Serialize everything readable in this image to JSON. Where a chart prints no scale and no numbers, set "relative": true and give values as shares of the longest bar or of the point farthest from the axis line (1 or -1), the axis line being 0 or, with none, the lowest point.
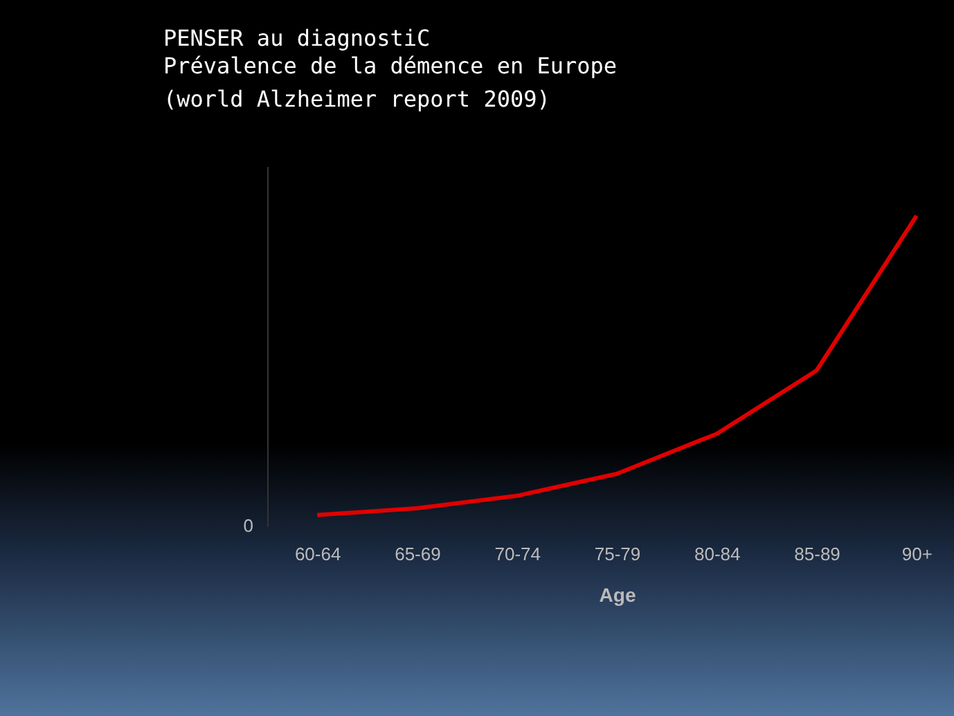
{
  "chart_data": {
    "type": "line",
    "title": "PENSER  au diagnostiC",
    "subtitle": "Prévalence de la démence en Europe\n(world Alzheimer report 2009)",
    "xlabel": "Age",
    "relative": true,
    "categories": [
      "60-64",
      "65-69",
      "70-74",
      "75-79",
      "80-84",
      "85-89",
      "90+"
    ],
    "series": [
      {
        "color": "#e00000",
        "values": [
          0.036,
          0.058,
          0.098,
          0.169,
          0.298,
          0.502,
          1
        ]
      }
    ],
    "annotations": [
      "0"
    ],
    "grid": false,
    "marker": "none",
    "line_style": "solid"
  }
}
